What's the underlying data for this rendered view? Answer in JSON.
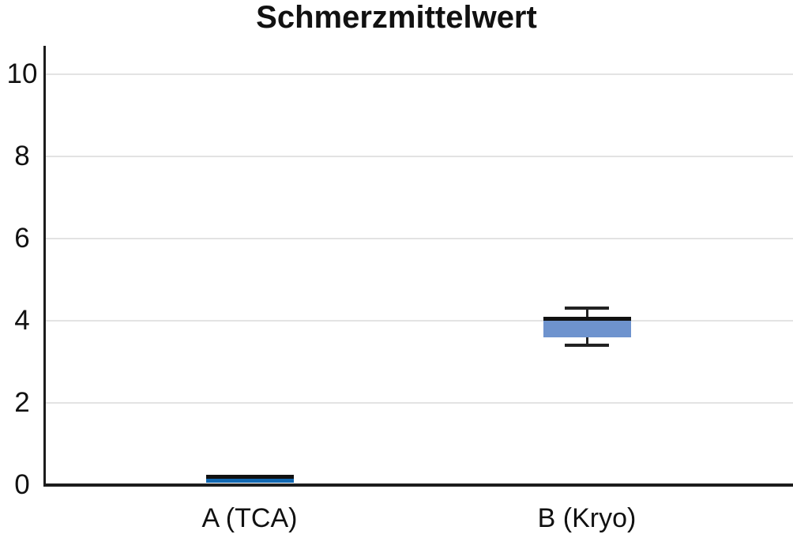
{
  "title": "Schmerzmittelwert",
  "colors": {
    "title_text": "#111111",
    "axis": "#1c1c1c",
    "gridline": "#e3e3e3",
    "tick_text": "#111111",
    "whisker": "#222222",
    "median": "#111111",
    "box_a_fill": "#1067b1",
    "box_b_fill": "#6e93ce"
  },
  "chart_data": {
    "type": "boxplot",
    "title": "Schmerzmittelwert",
    "categories": [
      "A (TCA)",
      "B (Kryo)"
    ],
    "xlabel": "",
    "ylabel": "",
    "ylim": [
      0,
      10.7
    ],
    "yticks": [
      0,
      2,
      4,
      6,
      8,
      10
    ],
    "grid": "horizontal-light",
    "legend": "none",
    "series": [
      {
        "name": "A (TCA)",
        "median": 0.2,
        "q1": 0.05,
        "q3": 0.2,
        "whisker_low": null,
        "whisker_high": null,
        "fill": "#1067b1"
      },
      {
        "name": "B (Kryo)",
        "median": 4.05,
        "q1": 3.6,
        "q3": 4.05,
        "whisker_low": 3.4,
        "whisker_high": 4.3,
        "fill": "#6e93ce"
      }
    ]
  }
}
